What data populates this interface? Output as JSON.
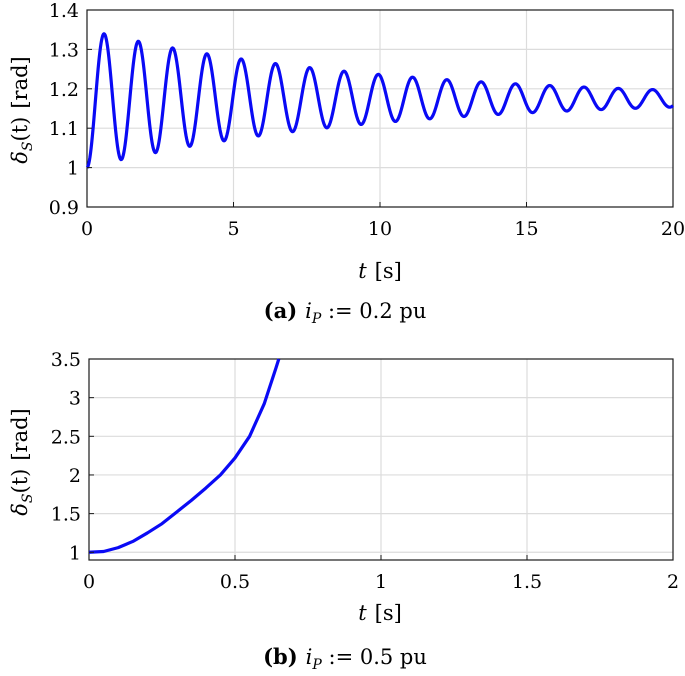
{
  "chart_data": [
    {
      "type": "line",
      "panel": "a",
      "caption_tag": "(a)",
      "caption_eq": "i",
      "caption_sub": "P",
      "caption_rest": " := 0.2 pu",
      "xlabel": "t",
      "xunit": "[s]",
      "ylabel": "δ",
      "ylabel_sub": "S",
      "ylabel_rest": "(t)",
      "yunit": "[rad]",
      "xlim": [
        0,
        20
      ],
      "ylim": [
        0.9,
        1.4
      ],
      "xticks": [
        0,
        5,
        10,
        15,
        20
      ],
      "xtick_labels": [
        "0",
        "5",
        "10",
        "15",
        "20"
      ],
      "yticks": [
        0.9,
        1.0,
        1.1,
        1.2,
        1.3,
        1.4
      ],
      "ytick_labels": [
        "0.9",
        "1",
        "1.1",
        "1.2",
        "1.3",
        "1.4"
      ],
      "grid": true,
      "color": "#0a0af5",
      "model": {
        "offset": 1.175,
        "amp0": 0.175,
        "decay": 0.105,
        "period": 1.17
      },
      "t_end": 20
    },
    {
      "type": "line",
      "panel": "b",
      "caption_tag": "(b)",
      "caption_eq": "i",
      "caption_sub": "P",
      "caption_rest": " := 0.5 pu",
      "xlabel": "t",
      "xunit": "[s]",
      "ylabel": "δ",
      "ylabel_sub": "S",
      "ylabel_rest": "(t)",
      "yunit": "[rad]",
      "xlim": [
        0,
        2
      ],
      "ylim": [
        0.9,
        3.5
      ],
      "xticks": [
        0,
        0.5,
        1,
        1.5,
        2
      ],
      "xtick_labels": [
        "0",
        "0.5",
        "1",
        "1.5",
        "2"
      ],
      "yticks": [
        1,
        1.5,
        2,
        2.5,
        3,
        3.5
      ],
      "ytick_labels": [
        "1",
        "1.5",
        "2",
        "2.5",
        "3",
        "3.5"
      ],
      "grid": true,
      "color": "#0a0af5",
      "points": [
        [
          0,
          1.0
        ],
        [
          0.05,
          1.01
        ],
        [
          0.1,
          1.06
        ],
        [
          0.15,
          1.14
        ],
        [
          0.2,
          1.25
        ],
        [
          0.25,
          1.37
        ],
        [
          0.3,
          1.52
        ],
        [
          0.35,
          1.67
        ],
        [
          0.4,
          1.83
        ],
        [
          0.45,
          2.0
        ],
        [
          0.5,
          2.22
        ],
        [
          0.55,
          2.5
        ],
        [
          0.6,
          2.92
        ],
        [
          0.62,
          3.15
        ],
        [
          0.64,
          3.38
        ],
        [
          0.65,
          3.5
        ]
      ]
    }
  ]
}
